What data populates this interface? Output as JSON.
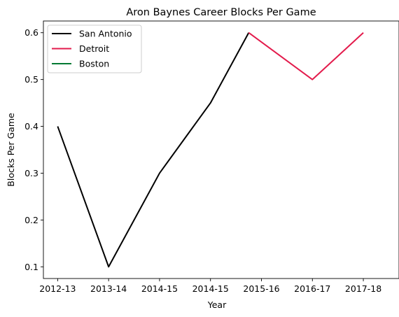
{
  "chart_data": {
    "type": "line",
    "title": "Aron Baynes Career Blocks Per Game",
    "xlabel": "Year",
    "ylabel": "Blocks Per Game",
    "categories": [
      "2012-13",
      "2013-14",
      "2014-15",
      "2014-15",
      "2015-16",
      "2016-17",
      "2017-18"
    ],
    "x_positions": [
      0,
      1,
      2,
      3,
      4,
      5,
      6
    ],
    "xlim": [
      -0.28,
      6.7
    ],
    "ylim": [
      0.075,
      0.625
    ],
    "yticks": [
      0.1,
      0.2,
      0.3,
      0.4,
      0.5,
      0.6
    ],
    "ytick_labels": [
      "0.1",
      "0.2",
      "0.3",
      "0.4",
      "0.5",
      "0.6"
    ],
    "grid": false,
    "legend_position": "top-left",
    "series": [
      {
        "name": "San Antonio",
        "color": "#000000",
        "x": [
          0,
          1,
          2,
          3,
          3.75
        ],
        "values": [
          0.4,
          0.1,
          0.3,
          0.45,
          0.6
        ]
      },
      {
        "name": "Detroit",
        "color": "#e31b4c",
        "x": [
          3.75,
          5,
          6
        ],
        "values": [
          0.6,
          0.5,
          0.6
        ]
      },
      {
        "name": "Boston",
        "color": "#007a33",
        "x": [],
        "values": []
      }
    ]
  }
}
